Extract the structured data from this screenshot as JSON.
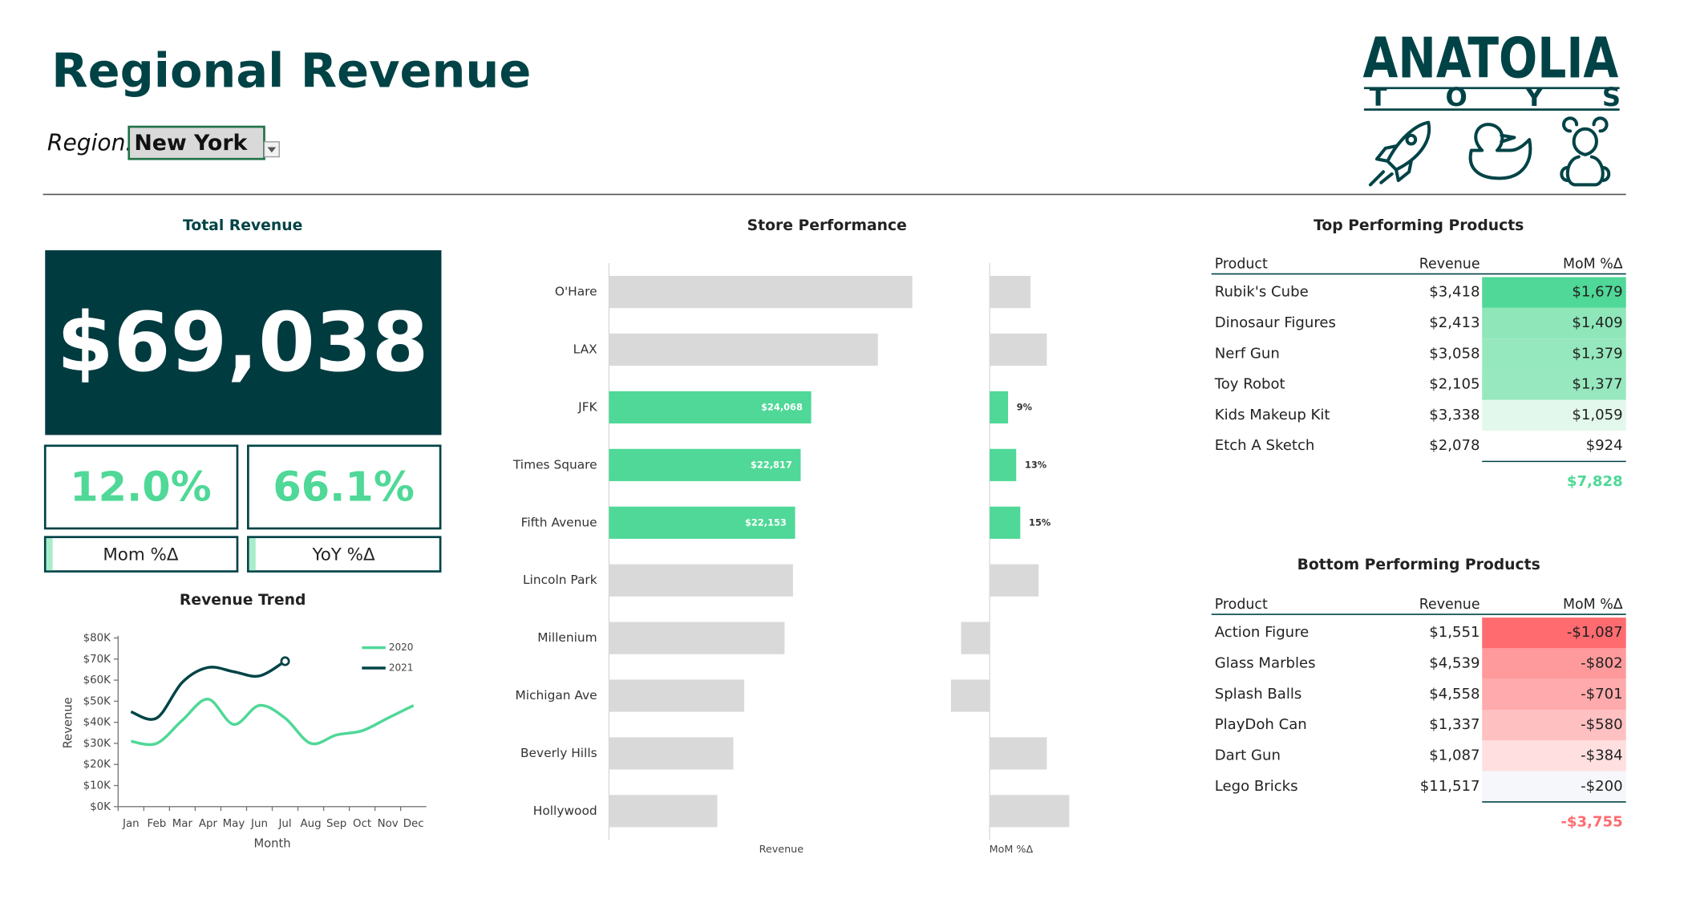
{
  "header": {
    "title": "Regional Revenue",
    "region_label": "Region:",
    "region": "New York"
  },
  "logo": {
    "name": "ANATOLIA",
    "sub": "TOYS"
  },
  "kpis": {
    "total_label": "Total Revenue",
    "total": "$69,038",
    "cards": [
      {
        "value": "12.0%",
        "label": "Mom %Δ"
      },
      {
        "value": "66.1%",
        "label": "YoY %Δ"
      }
    ]
  },
  "chart_data": [
    {
      "type": "line",
      "title": "Revenue Trend",
      "categories": [
        "Jan",
        "Feb",
        "Mar",
        "Apr",
        "May",
        "Jun",
        "Jul",
        "Aug",
        "Sep",
        "Oct",
        "Nov",
        "Dec"
      ],
      "series": [
        {
          "name": "2020",
          "color": "#4fd897",
          "values": [
            31000,
            30000,
            41000,
            51000,
            39000,
            48000,
            42000,
            30000,
            34000,
            36000,
            42000,
            48000
          ]
        },
        {
          "name": "2021",
          "color": "#004346",
          "end_marker": true,
          "values": [
            45000,
            42000,
            59000,
            66000,
            64000,
            62000,
            69000,
            null,
            null,
            null,
            null,
            null
          ]
        }
      ],
      "ylim": [
        0,
        80000
      ],
      "yticks": [
        {
          "value": 0,
          "label": "$0K"
        },
        {
          "value": 10000,
          "label": "$10K"
        },
        {
          "value": 20000,
          "label": "$20K"
        },
        {
          "value": 30000,
          "label": "$30K"
        },
        {
          "value": 40000,
          "label": "$40K"
        },
        {
          "value": 50000,
          "label": "$50K"
        },
        {
          "value": 60000,
          "label": "$60K"
        },
        {
          "value": 70000,
          "label": "$70K"
        },
        {
          "value": 80000,
          "label": "$80K"
        }
      ],
      "x_label": "Month",
      "y_label": "Revenue",
      "legend": "upper right"
    },
    {
      "type": "bar",
      "orientation": "horizontal",
      "title": "Store Performance",
      "categories": [
        "O'Hare",
        "LAX",
        "JFK",
        "Times Square",
        "Fifth Avenue",
        "Lincoln Park",
        "Millenium",
        "Michigan Ave",
        "Beverly Hills",
        "Hollywood"
      ],
      "series": [
        {
          "name": "Revenue",
          "xlim": [
            0,
            40000
          ],
          "values": [
            36100,
            32000,
            24068,
            22817,
            22153,
            21900,
            20900,
            16100,
            14800,
            12900
          ],
          "value_labels": [
            null,
            null,
            "$24,068",
            "$22,817",
            "$22,153",
            null,
            null,
            null,
            null,
            null
          ],
          "colors": [
            "#d9d9d9",
            "#d9d9d9",
            "#4fd897",
            "#4fd897",
            "#4fd897",
            "#d9d9d9",
            "#d9d9d9",
            "#d9d9d9",
            "#d9d9d9",
            "#d9d9d9"
          ]
        },
        {
          "name": "MoM %Δ",
          "xlim": [
            -25,
            45
          ],
          "values": [
            20,
            28,
            9,
            13,
            15,
            24,
            -14,
            -19,
            28,
            39
          ],
          "value_labels": [
            null,
            null,
            "9%",
            "13%",
            "15%",
            null,
            null,
            null,
            null,
            null
          ],
          "colors": [
            "#d9d9d9",
            "#d9d9d9",
            "#4fd897",
            "#4fd897",
            "#4fd897",
            "#d9d9d9",
            "#d9d9d9",
            "#d9d9d9",
            "#d9d9d9",
            "#d9d9d9"
          ]
        }
      ]
    }
  ],
  "tables": [
    {
      "title": "Top Performing Products",
      "columns": [
        "Product",
        "Revenue",
        "MoM %Δ"
      ],
      "rows": [
        [
          "Rubik's Cube",
          "$3,418",
          "$1,679"
        ],
        [
          "Dinosaur Figures",
          "$2,413",
          "$1,409"
        ],
        [
          "Nerf Gun",
          "$3,058",
          "$1,379"
        ],
        [
          "Toy Robot",
          "$2,105",
          "$1,377"
        ],
        [
          "Kids Makeup Kit",
          "$3,338",
          "$1,059"
        ],
        [
          "Etch A Sketch",
          "$2,078",
          "$924"
        ]
      ],
      "shading": [
        "#4fd897",
        "#8ee6b9",
        "#95e8bd",
        "#97e8bf",
        "#e3f8ec",
        "#ffffff"
      ],
      "total": "$7,828",
      "total_color": "#4fd897"
    },
    {
      "title": "Bottom Performing Products",
      "columns": [
        "Product",
        "Revenue",
        "MoM %Δ"
      ],
      "rows": [
        [
          "Action Figure",
          "$1,551",
          "-$1,087"
        ],
        [
          "Glass Marbles",
          "$4,539",
          "-$802"
        ],
        [
          "Splash Balls",
          "$4,558",
          "-$701"
        ],
        [
          "PlayDoh Can",
          "$1,337",
          "-$580"
        ],
        [
          "Dart Gun",
          "$1,087",
          "-$384"
        ],
        [
          "Lego Bricks",
          "$11,517",
          "-$200"
        ]
      ],
      "shading": [
        "#ff6b6f",
        "#ff9a9c",
        "#ffaaac",
        "#ffc0c2",
        "#ffdfe0",
        "#f6f7fb"
      ],
      "total": "-$3,755",
      "total_color": "#ff6b6f"
    }
  ]
}
